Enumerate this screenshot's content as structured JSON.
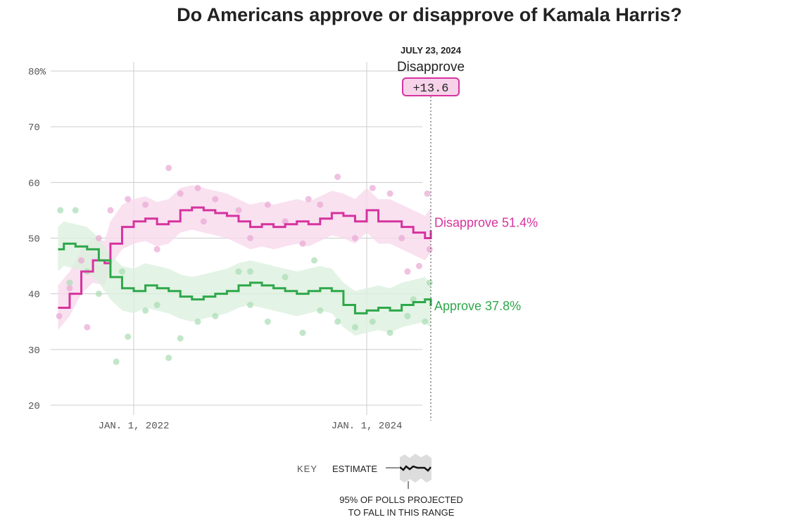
{
  "title": "Do Americans approve or disapprove of Kamala Harris?",
  "annotation": {
    "date": "JULY 23, 2024",
    "leader": "Disapprove",
    "margin": "+13.6"
  },
  "key": {
    "label": "KEY",
    "estimate": "ESTIMATE",
    "range": "95% OF POLLS PROJECTED",
    "range2": "TO FALL IN THIS RANGE"
  },
  "chart_data": {
    "type": "line",
    "title": "Do Americans approve or disapprove of Kamala Harris?",
    "xlabel": "",
    "ylabel": "",
    "ylim": [
      20,
      80
    ],
    "xlim": [
      2021.3,
      2024.56
    ],
    "yticks": [
      {
        "v": 80,
        "label": "80%"
      },
      {
        "v": 70,
        "label": "70"
      },
      {
        "v": 60,
        "label": "60"
      },
      {
        "v": 50,
        "label": "50"
      },
      {
        "v": 40,
        "label": "40"
      },
      {
        "v": 30,
        "label": "30"
      },
      {
        "v": 20,
        "label": "20"
      }
    ],
    "xticks": [
      {
        "v": 2022,
        "label": "JAN. 1, 2022"
      },
      {
        "v": 2024,
        "label": "JAN. 1, 2024"
      }
    ],
    "band_halfwidth": 4,
    "series": [
      {
        "name": "Disapprove",
        "end_label": "Disapprove 51.4%",
        "color": "#d6339e",
        "band": "#f7d9ec",
        "poll": "#e9a6d3",
        "x": [
          2021.35,
          2021.45,
          2021.55,
          2021.65,
          2021.75,
          2021.8,
          2021.9,
          2022.0,
          2022.1,
          2022.2,
          2022.3,
          2022.4,
          2022.5,
          2022.6,
          2022.7,
          2022.8,
          2022.9,
          2023.0,
          2023.1,
          2023.2,
          2023.3,
          2023.4,
          2023.5,
          2023.6,
          2023.7,
          2023.8,
          2023.9,
          2024.0,
          2024.1,
          2024.2,
          2024.3,
          2024.4,
          2024.5,
          2024.55
        ],
        "y": [
          37.5,
          40,
          44,
          46,
          45.5,
          49,
          52,
          53,
          53.5,
          52.5,
          53,
          55,
          55.5,
          55,
          54.5,
          54,
          53,
          52,
          52.5,
          52,
          52.5,
          53,
          52.5,
          53.5,
          54.5,
          54,
          53,
          55,
          53,
          53,
          52,
          51,
          50,
          51.4
        ],
        "polls": [
          [
            2021.36,
            36
          ],
          [
            2021.45,
            41
          ],
          [
            2021.55,
            46
          ],
          [
            2021.7,
            50
          ],
          [
            2021.8,
            55
          ],
          [
            2021.95,
            57
          ],
          [
            2022.1,
            56
          ],
          [
            2022.2,
            48
          ],
          [
            2022.3,
            62.6
          ],
          [
            2022.4,
            58
          ],
          [
            2022.55,
            59
          ],
          [
            2022.7,
            57
          ],
          [
            2022.9,
            55
          ],
          [
            2023.0,
            50
          ],
          [
            2023.15,
            56
          ],
          [
            2023.3,
            53
          ],
          [
            2023.45,
            49
          ],
          [
            2023.6,
            56
          ],
          [
            2023.75,
            61
          ],
          [
            2023.9,
            50
          ],
          [
            2024.05,
            59
          ],
          [
            2024.2,
            58
          ],
          [
            2024.35,
            44
          ],
          [
            2024.45,
            45
          ],
          [
            2024.52,
            58
          ],
          [
            2024.54,
            48
          ],
          [
            2021.6,
            34
          ],
          [
            2022.6,
            53
          ],
          [
            2023.5,
            57
          ],
          [
            2024.3,
            50
          ]
        ]
      },
      {
        "name": "Approve",
        "end_label": "Approve 37.8%",
        "color": "#2ea84a",
        "band": "#dcf0df",
        "poll": "#a8dbb2",
        "x": [
          2021.35,
          2021.4,
          2021.5,
          2021.6,
          2021.7,
          2021.8,
          2021.9,
          2022.0,
          2022.1,
          2022.2,
          2022.3,
          2022.4,
          2022.5,
          2022.6,
          2022.7,
          2022.8,
          2022.9,
          2023.0,
          2023.1,
          2023.2,
          2023.3,
          2023.4,
          2023.5,
          2023.6,
          2023.7,
          2023.8,
          2023.9,
          2024.0,
          2024.1,
          2024.2,
          2024.3,
          2024.4,
          2024.5,
          2024.55
        ],
        "y": [
          48,
          49,
          48.5,
          48,
          46,
          43,
          41,
          40.5,
          41.5,
          41,
          40.5,
          39.5,
          39,
          39.5,
          40,
          40.5,
          41.5,
          42,
          41.5,
          41,
          40.5,
          40,
          40.5,
          41,
          40.5,
          38,
          36.5,
          37,
          37.5,
          37,
          38,
          38.5,
          39,
          37.8
        ],
        "polls": [
          [
            2021.37,
            55
          ],
          [
            2021.5,
            55
          ],
          [
            2021.6,
            44
          ],
          [
            2021.7,
            40
          ],
          [
            2021.85,
            27.8
          ],
          [
            2021.95,
            32.3
          ],
          [
            2022.1,
            37
          ],
          [
            2022.3,
            28.5
          ],
          [
            2022.4,
            32
          ],
          [
            2022.55,
            35
          ],
          [
            2022.7,
            36
          ],
          [
            2022.9,
            44
          ],
          [
            2023.0,
            38
          ],
          [
            2023.15,
            35
          ],
          [
            2023.3,
            43
          ],
          [
            2023.45,
            33
          ],
          [
            2023.6,
            37
          ],
          [
            2023.75,
            35
          ],
          [
            2023.9,
            34
          ],
          [
            2024.05,
            35
          ],
          [
            2024.2,
            33
          ],
          [
            2024.35,
            36
          ],
          [
            2024.5,
            35
          ],
          [
            2024.54,
            42
          ],
          [
            2021.45,
            42
          ],
          [
            2022.2,
            38
          ],
          [
            2023.0,
            44
          ],
          [
            2023.55,
            46
          ],
          [
            2024.4,
            39
          ],
          [
            2021.9,
            44
          ]
        ]
      }
    ]
  }
}
